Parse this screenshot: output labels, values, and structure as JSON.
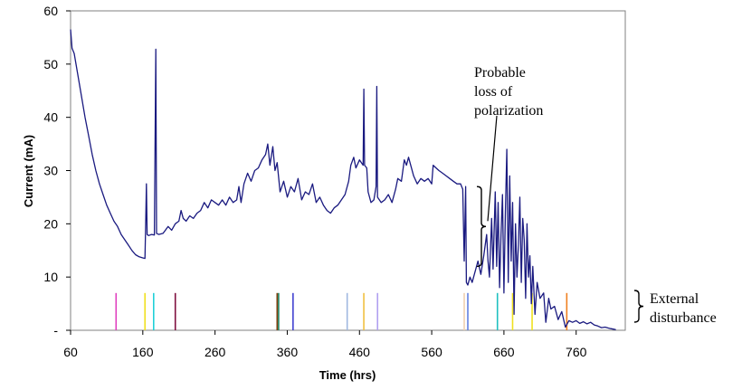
{
  "chart_data": {
    "type": "line",
    "title": "",
    "xlabel": "Time (hrs)",
    "ylabel": "Current (mA)",
    "xlim": [
      60,
      828
    ],
    "ylim": [
      0,
      60
    ],
    "x_ticks": [
      60,
      160,
      260,
      360,
      460,
      560,
      660,
      760
    ],
    "y_ticks": [
      {
        "value": 0,
        "label": "-"
      },
      {
        "value": 10,
        "label": "10"
      },
      {
        "value": 20,
        "label": "20"
      },
      {
        "value": 30,
        "label": "30"
      },
      {
        "value": 40,
        "label": "40"
      },
      {
        "value": 50,
        "label": "50"
      },
      {
        "value": 60,
        "label": "60"
      }
    ],
    "grid": false,
    "legend": "none",
    "series": [
      {
        "color": "#1a1a80",
        "points": [
          [
            60,
            56.5
          ],
          [
            62,
            53
          ],
          [
            65,
            52
          ],
          [
            70,
            48
          ],
          [
            75,
            44
          ],
          [
            80,
            40
          ],
          [
            85,
            36.5
          ],
          [
            90,
            33
          ],
          [
            95,
            30
          ],
          [
            100,
            27.5
          ],
          [
            105,
            25.5
          ],
          [
            110,
            23.5
          ],
          [
            115,
            22
          ],
          [
            120,
            20.5
          ],
          [
            125,
            19.5
          ],
          [
            130,
            18
          ],
          [
            135,
            17
          ],
          [
            140,
            16
          ],
          [
            145,
            15
          ],
          [
            150,
            14.2
          ],
          [
            155,
            13.8
          ],
          [
            160,
            13.6
          ],
          [
            163,
            13.5
          ],
          [
            164,
            20
          ],
          [
            165,
            27.5
          ],
          [
            166,
            18
          ],
          [
            168,
            17.8
          ],
          [
            172,
            18
          ],
          [
            176,
            17.9
          ],
          [
            178,
            52.8
          ],
          [
            179,
            18.2
          ],
          [
            182,
            18
          ],
          [
            188,
            18.2
          ],
          [
            195,
            19.5
          ],
          [
            200,
            18.8
          ],
          [
            205,
            20
          ],
          [
            210,
            20.5
          ],
          [
            213,
            22.5
          ],
          [
            216,
            21
          ],
          [
            220,
            20.5
          ],
          [
            225,
            21.5
          ],
          [
            230,
            21
          ],
          [
            235,
            22
          ],
          [
            240,
            22.5
          ],
          [
            245,
            24
          ],
          [
            250,
            23
          ],
          [
            255,
            24.5
          ],
          [
            260,
            24
          ],
          [
            265,
            23.5
          ],
          [
            270,
            24.5
          ],
          [
            275,
            23.5
          ],
          [
            280,
            25
          ],
          [
            285,
            24
          ],
          [
            290,
            24.5
          ],
          [
            293,
            27
          ],
          [
            296,
            24
          ],
          [
            300,
            27.5
          ],
          [
            305,
            29.5
          ],
          [
            310,
            28
          ],
          [
            315,
            30
          ],
          [
            320,
            30.5
          ],
          [
            325,
            32
          ],
          [
            330,
            33
          ],
          [
            333,
            35
          ],
          [
            336,
            31
          ],
          [
            340,
            34.5
          ],
          [
            343,
            30
          ],
          [
            346,
            31.5
          ],
          [
            350,
            26
          ],
          [
            355,
            28
          ],
          [
            360,
            25
          ],
          [
            365,
            27
          ],
          [
            370,
            26
          ],
          [
            375,
            28.5
          ],
          [
            380,
            24.5
          ],
          [
            385,
            26
          ],
          [
            390,
            25.5
          ],
          [
            395,
            27.5
          ],
          [
            400,
            24
          ],
          [
            405,
            25
          ],
          [
            410,
            23.5
          ],
          [
            415,
            22.5
          ],
          [
            420,
            22
          ],
          [
            425,
            23
          ],
          [
            430,
            23.5
          ],
          [
            435,
            24.5
          ],
          [
            440,
            25.5
          ],
          [
            445,
            28
          ],
          [
            448,
            31
          ],
          [
            452,
            32.5
          ],
          [
            455,
            30.5
          ],
          [
            460,
            32
          ],
          [
            465,
            31
          ],
          [
            466,
            45.3
          ],
          [
            467,
            31
          ],
          [
            470,
            30.5
          ],
          [
            472,
            26
          ],
          [
            476,
            24
          ],
          [
            480,
            24.5
          ],
          [
            483,
            27
          ],
          [
            484,
            45.8
          ],
          [
            485,
            25
          ],
          [
            490,
            24
          ],
          [
            495,
            24.5
          ],
          [
            500,
            25.5
          ],
          [
            505,
            24
          ],
          [
            510,
            26.5
          ],
          [
            513,
            28.5
          ],
          [
            518,
            28
          ],
          [
            522,
            32
          ],
          [
            525,
            31
          ],
          [
            528,
            32.5
          ],
          [
            532,
            30.5
          ],
          [
            535,
            29
          ],
          [
            540,
            27.5
          ],
          [
            545,
            28.5
          ],
          [
            550,
            28
          ],
          [
            555,
            28.5
          ],
          [
            560,
            27.5
          ],
          [
            562,
            31
          ],
          [
            566,
            30.5
          ],
          [
            570,
            30
          ],
          [
            575,
            29.5
          ],
          [
            580,
            29
          ],
          [
            585,
            28.5
          ],
          [
            590,
            28
          ],
          [
            595,
            27.5
          ],
          [
            600,
            27.5
          ],
          [
            603,
            26.5
          ],
          [
            605,
            13
          ],
          [
            607,
            27
          ],
          [
            608,
            9
          ],
          [
            610,
            8.5
          ],
          [
            613,
            10
          ],
          [
            616,
            9
          ],
          [
            620,
            11
          ],
          [
            624,
            13
          ],
          [
            628,
            10.5
          ],
          [
            632,
            14
          ],
          [
            636,
            18
          ],
          [
            638,
            13
          ],
          [
            640,
            10
          ],
          [
            643,
            21
          ],
          [
            645,
            11.5
          ],
          [
            648,
            26
          ],
          [
            650,
            12
          ],
          [
            652,
            24
          ],
          [
            654,
            8
          ],
          [
            656,
            18
          ],
          [
            658,
            25.5
          ],
          [
            660,
            7
          ],
          [
            662,
            22
          ],
          [
            664,
            34
          ],
          [
            666,
            9
          ],
          [
            668,
            29
          ],
          [
            670,
            13
          ],
          [
            672,
            24
          ],
          [
            674,
            3
          ],
          [
            676,
            20
          ],
          [
            678,
            10
          ],
          [
            680,
            16
          ],
          [
            682,
            25
          ],
          [
            684,
            9
          ],
          [
            686,
            21
          ],
          [
            688,
            17
          ],
          [
            690,
            6
          ],
          [
            692,
            20
          ],
          [
            694,
            10
          ],
          [
            696,
            14
          ],
          [
            698,
            5
          ],
          [
            700,
            12
          ],
          [
            703,
            3
          ],
          [
            706,
            9
          ],
          [
            710,
            6
          ],
          [
            715,
            7
          ],
          [
            718,
            1.5
          ],
          [
            722,
            6
          ],
          [
            725,
            4
          ],
          [
            730,
            4.5
          ],
          [
            735,
            2
          ],
          [
            740,
            3.5
          ],
          [
            745,
            0.6
          ],
          [
            750,
            1.8
          ],
          [
            755,
            1.5
          ],
          [
            760,
            1.8
          ],
          [
            765,
            1.3
          ],
          [
            770,
            1.6
          ],
          [
            775,
            1.2
          ],
          [
            780,
            1.5
          ],
          [
            785,
            1.0
          ],
          [
            790,
            0.8
          ],
          [
            795,
            0.5
          ],
          [
            800,
            0.6
          ],
          [
            805,
            0.4
          ],
          [
            808,
            0.3
          ],
          [
            812,
            0.2
          ],
          [
            815,
            0.1
          ]
        ]
      }
    ],
    "markers": {
      "height": 7,
      "items": [
        {
          "x": 123,
          "color": "#e040c0"
        },
        {
          "x": 163,
          "color": "#f0e020"
        },
        {
          "x": 175,
          "color": "#20d0d8"
        },
        {
          "x": 205,
          "color": "#801040"
        },
        {
          "x": 346,
          "color": "#804010"
        },
        {
          "x": 348,
          "color": "#208060"
        },
        {
          "x": 368,
          "color": "#4040d0"
        },
        {
          "x": 443,
          "color": "#a0b8e0"
        },
        {
          "x": 466,
          "color": "#f0c040"
        },
        {
          "x": 485,
          "color": "#b0a0f0"
        },
        {
          "x": 605,
          "color": "#f0d0b0"
        },
        {
          "x": 610,
          "color": "#6080e0"
        },
        {
          "x": 651,
          "color": "#20c0c0"
        },
        {
          "x": 672,
          "color": "#f0e020"
        },
        {
          "x": 699,
          "color": "#f0e020"
        },
        {
          "x": 747,
          "color": "#f08020"
        }
      ]
    },
    "annotations": [
      {
        "name": "annotation-probable-loss",
        "lines": [
          "Probable",
          "loss of",
          "polarization"
        ],
        "y_range": [
          12,
          27
        ]
      },
      {
        "name": "annotation-external-disturbance",
        "lines": [
          "External",
          "disturbance"
        ],
        "y_range": [
          1.5,
          7.5
        ]
      }
    ]
  }
}
